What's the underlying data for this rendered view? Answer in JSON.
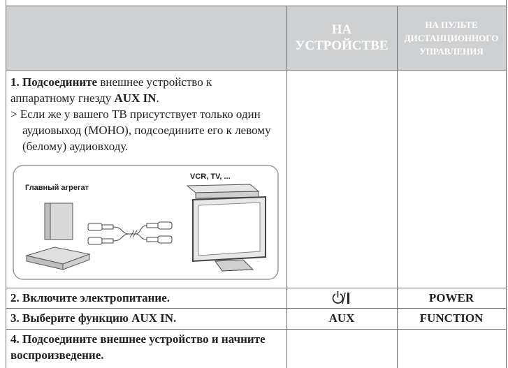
{
  "table": {
    "headers": [
      "НА УСТРОЙСТВЕ",
      "НА ПУЛЬТЕ ДИСТАНЦИОННОГО УПРАВЛЕНИЯ"
    ],
    "rows": [
      {
        "instruction": [
          {
            "text": "1. Подсоедините",
            "bold": true
          },
          {
            "text": " внешнее устройство к аппаратному гнезду ",
            "bold": false
          },
          {
            "text": "AUX IN",
            "bold": true
          },
          {
            "text": ".",
            "bold": false
          }
        ],
        "note": "> Если же у вашего ТВ присутствует только один аудиовыход (МОНО), подсоедините его к левому (белому) аудиовходу.",
        "figure": {
          "main_unit": "Главный агрегат",
          "sources": "VCR, TV, ..."
        }
      },
      {
        "instruction": "2. Включите электропитание.",
        "remote": "POWER"
      },
      {
        "instruction": "3. Выберите  функцию AUX IN.",
        "device": "AUX",
        "remote": "FUNCTION"
      },
      {
        "instruction": "4. Подсоедините внешнее устройство и начните воспроизведение."
      }
    ]
  }
}
